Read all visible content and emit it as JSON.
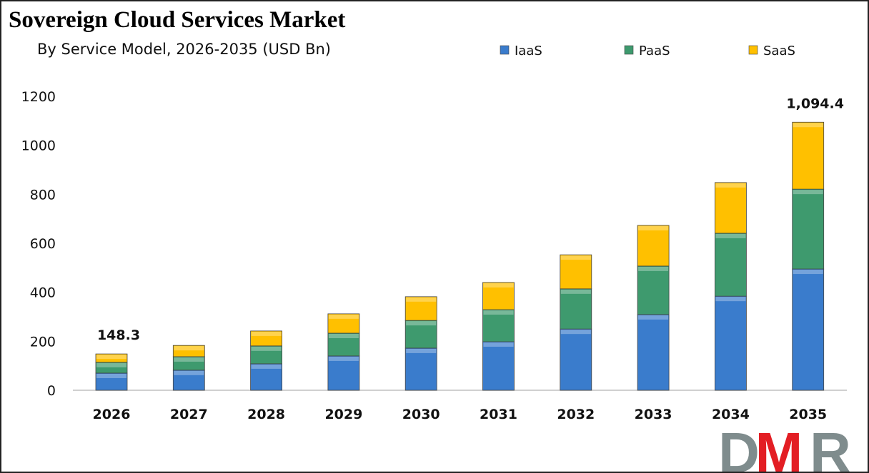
{
  "chart_data": {
    "type": "bar",
    "stacked": true,
    "title": "Sovereign Cloud Services Market",
    "subtitle": "By Service Model, 2026-2035 (USD Bn)",
    "categories": [
      "2026",
      "2027",
      "2028",
      "2029",
      "2030",
      "2031",
      "2032",
      "2033",
      "2034",
      "2035"
    ],
    "series": [
      {
        "name": "IaaS",
        "color": "#3a7ccc",
        "values": [
          70,
          82,
          108,
          140,
          172,
          198,
          250,
          309,
          384,
          495
        ]
      },
      {
        "name": "PaaS",
        "color": "#3e9a6e",
        "values": [
          44,
          55,
          73,
          93,
          113,
          131,
          164,
          198,
          257,
          326
        ]
      },
      {
        "name": "SaaS",
        "color": "#ffc000",
        "values": [
          34.3,
          46,
          61,
          79,
          97,
          111,
          139,
          166,
          207,
          273.4
        ]
      }
    ],
    "data_labels": [
      {
        "category": "2026",
        "text": "148.3"
      },
      {
        "category": "2035",
        "text": "1,094.4"
      }
    ],
    "ylim": [
      0,
      1200
    ],
    "yticks": [
      0,
      200,
      400,
      600,
      800,
      1000,
      1200
    ],
    "grid": false,
    "legend": "top-right",
    "xlabel": "",
    "ylabel": ""
  },
  "logo": {
    "text": "DMR",
    "colors": [
      "#7f8c8d",
      "#e31e24"
    ]
  }
}
